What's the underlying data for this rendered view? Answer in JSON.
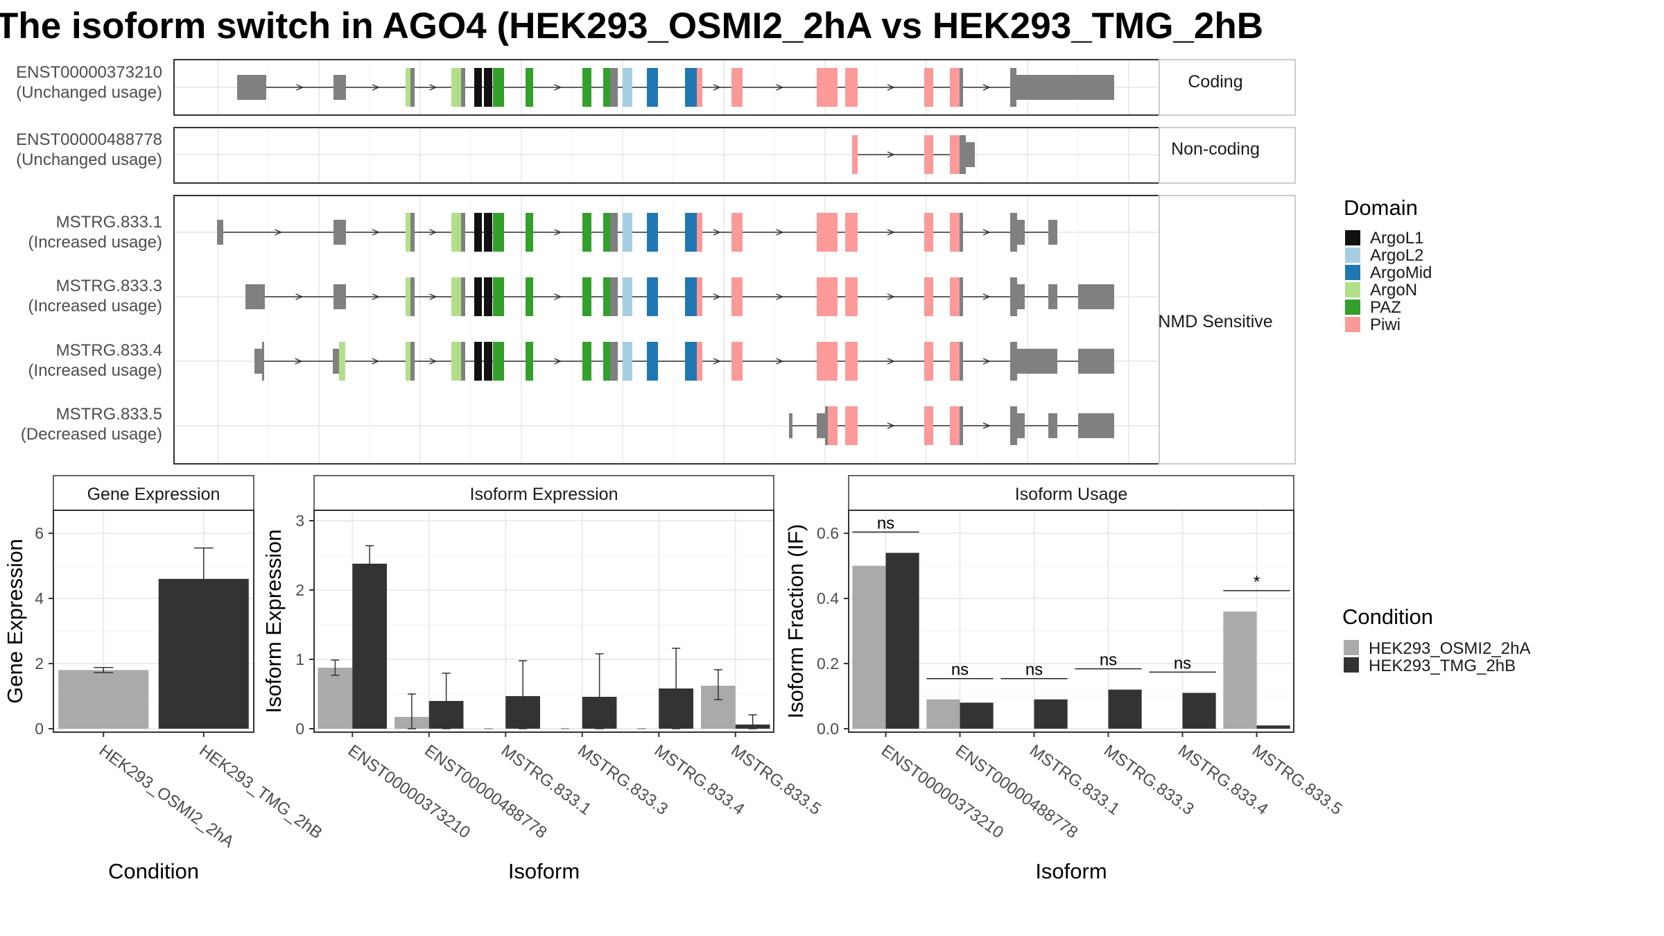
{
  "title": "The isoform switch in AGO4 (HEK293_OSMI2_2hA vs HEK293_TMG_2hB",
  "colors": {
    "ArgoL1": "#111111",
    "ArgoL2": "#a6cee3",
    "ArgoMid": "#1f78b4",
    "ArgoN": "#b2df8a",
    "PAZ": "#33a02c",
    "Piwi": "#fb9a99",
    "exon": "#808080",
    "cond1": "#aaaaaa",
    "cond2": "#333333"
  },
  "transcripts": {
    "groups": [
      {
        "label": "Coding",
        "members": [
          0
        ]
      },
      {
        "label": "Non-coding",
        "members": [
          1
        ]
      },
      {
        "label": "NMD Sensitive",
        "members": [
          2,
          3,
          4,
          5
        ]
      }
    ],
    "items": [
      {
        "id": "ENST00000373210",
        "usage": "(Unchanged usage)"
      },
      {
        "id": "ENST00000488778",
        "usage": "(Unchanged usage)"
      },
      {
        "id": "MSTRG.833.1",
        "usage": "(Increased usage)"
      },
      {
        "id": "MSTRG.833.3",
        "usage": "(Increased usage)"
      },
      {
        "id": "MSTRG.833.4",
        "usage": "(Increased usage)"
      },
      {
        "id": "MSTRG.833.5",
        "usage": "(Decreased usage)"
      }
    ]
  },
  "legend_domain": {
    "title": "Domain",
    "items": [
      "ArgoL1",
      "ArgoL2",
      "ArgoMid",
      "ArgoN",
      "PAZ",
      "Piwi"
    ]
  },
  "legend_condition": {
    "title": "Condition",
    "items": [
      "HEK293_OSMI2_2hA",
      "HEK293_TMG_2hB"
    ]
  },
  "chart_data": [
    {
      "type": "bar",
      "title": "Gene Expression",
      "xlabel": "Condition",
      "ylabel": "Gene Expression",
      "categories": [
        "HEK293_OSMI2_2hA",
        "HEK293_TMG_2hB"
      ],
      "values": [
        1.8,
        4.6
      ],
      "errors": [
        [
          1.72,
          1.88
        ],
        [
          3.65,
          5.55
        ]
      ],
      "yticks": [
        0,
        2,
        4,
        6
      ],
      "ylim": [
        0,
        6.6
      ]
    },
    {
      "type": "bar",
      "title": "Isoform Expression",
      "xlabel": "Isoform",
      "ylabel": "Isoform Expression",
      "categories": [
        "ENST00000373210",
        "ENST00000488778",
        "MSTRG.833.1",
        "MSTRG.833.3",
        "MSTRG.833.4",
        "MSTRG.833.5"
      ],
      "series": [
        {
          "name": "HEK293_OSMI2_2hA",
          "values": [
            0.88,
            0.17,
            0,
            0,
            0,
            0.62
          ],
          "errors": [
            [
              0.77,
              0.99
            ],
            [
              0,
              0.5
            ],
            [
              0,
              0
            ],
            [
              0,
              0
            ],
            [
              0,
              0
            ],
            [
              0.42,
              0.85
            ]
          ]
        },
        {
          "name": "HEK293_TMG_2hB",
          "values": [
            2.38,
            0.4,
            0.47,
            0.46,
            0.58,
            0.06
          ],
          "errors": [
            [
              2.12,
              2.64
            ],
            [
              0,
              0.8
            ],
            [
              0,
              0.98
            ],
            [
              0,
              1.08
            ],
            [
              0,
              1.16
            ],
            [
              0,
              0.2
            ]
          ]
        }
      ],
      "yticks": [
        0,
        1,
        2,
        3
      ],
      "ylim": [
        0,
        3.1
      ]
    },
    {
      "type": "bar",
      "title": "Isoform Usage",
      "xlabel": "Isoform",
      "ylabel": "Isoform Fraction (IF)",
      "categories": [
        "ENST00000373210",
        "ENST00000488778",
        "MSTRG.833.1",
        "MSTRG.833.3",
        "MSTRG.833.4",
        "MSTRG.833.5"
      ],
      "series": [
        {
          "name": "HEK293_OSMI2_2hA",
          "values": [
            0.5,
            0.09,
            0,
            0,
            0,
            0.36
          ]
        },
        {
          "name": "HEK293_TMG_2hB",
          "values": [
            0.54,
            0.08,
            0.09,
            0.12,
            0.11,
            0.01
          ]
        }
      ],
      "significance": [
        "ns",
        "ns",
        "ns",
        "ns",
        "ns",
        "*"
      ],
      "yticks": [
        0.0,
        0.2,
        0.4,
        0.6
      ],
      "ytick_labels": [
        "0.0",
        "0.2",
        "0.4",
        "0.6"
      ],
      "ylim": [
        0,
        0.66
      ]
    }
  ]
}
